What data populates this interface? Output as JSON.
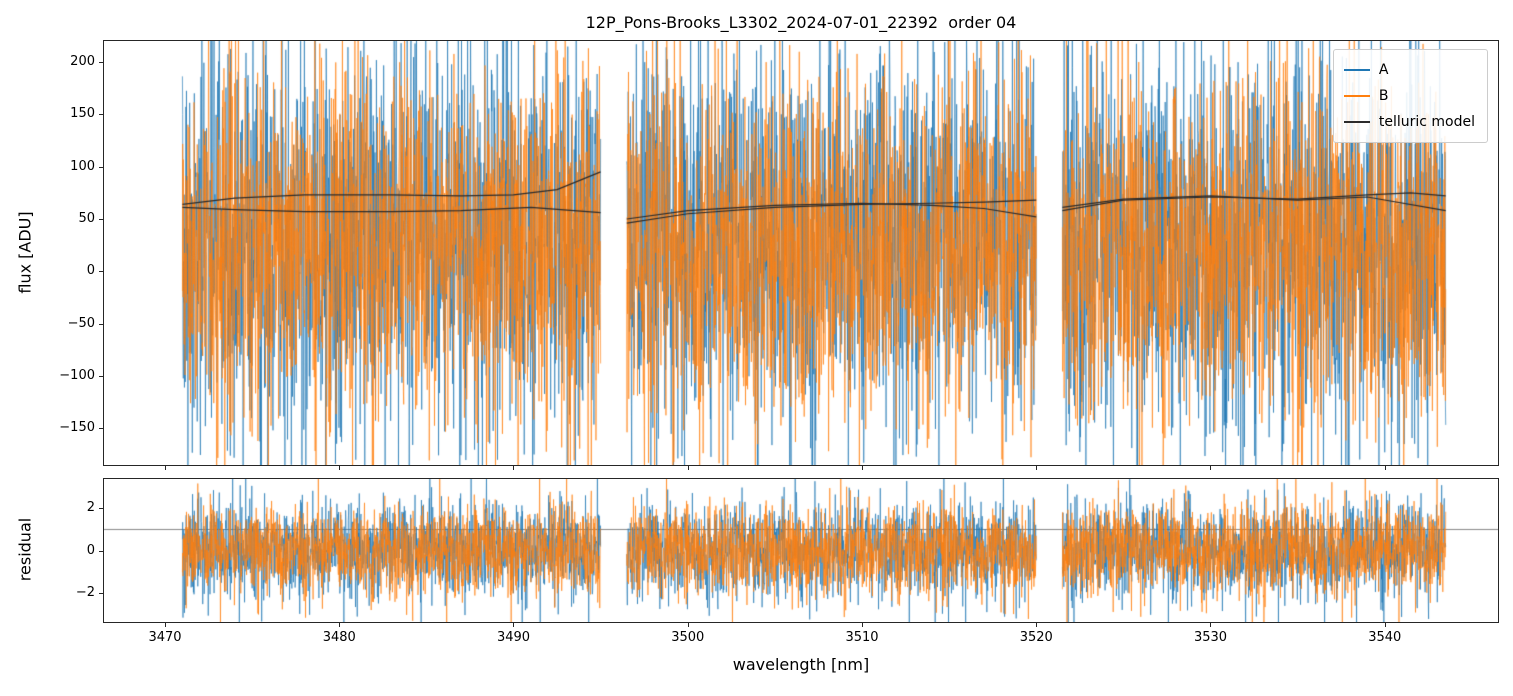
{
  "chart_data": [
    {
      "type": "line",
      "panel": "flux",
      "title": "12P_Pons-Brooks_L3302_2024-07-01_22392  order 04",
      "xlabel": "",
      "ylabel": "flux [ADU]",
      "xlim": [
        3466.5,
        3546.5
      ],
      "ylim": [
        -185,
        220
      ],
      "grid": false,
      "legend_loc": "upper right",
      "xticks": [
        {
          "v": 3470,
          "label": "3470"
        },
        {
          "v": 3480,
          "label": "3480"
        },
        {
          "v": 3490,
          "label": "3490"
        },
        {
          "v": 3500,
          "label": "3500"
        },
        {
          "v": 3510,
          "label": "3510"
        },
        {
          "v": 3520,
          "label": "3520"
        },
        {
          "v": 3530,
          "label": "3530"
        },
        {
          "v": 3540,
          "label": "3540"
        }
      ],
      "yticks": [
        {
          "v": -150,
          "label": "−150"
        },
        {
          "v": -100,
          "label": "−100"
        },
        {
          "v": -50,
          "label": "−50"
        },
        {
          "v": 0,
          "label": "0"
        },
        {
          "v": 50,
          "label": "50"
        },
        {
          "v": 100,
          "label": "100"
        },
        {
          "v": 150,
          "label": "150"
        },
        {
          "v": 200,
          "label": "200"
        }
      ],
      "segments": [
        [
          3471,
          3495
        ],
        [
          3496.5,
          3520
        ],
        [
          3521.5,
          3543.5
        ]
      ],
      "series": [
        {
          "name": "A",
          "color": "#1f77b4",
          "kind": "noise",
          "mean": 28,
          "sigma": 92,
          "points_per_nm": 60,
          "seed": 11
        },
        {
          "name": "B",
          "color": "#ff7f0e",
          "kind": "noise",
          "mean": 22,
          "sigma": 82,
          "points_per_nm": 60,
          "seed": 22
        },
        {
          "name": "telluric model",
          "color": "#2b2b2b",
          "kind": "model",
          "lines": [
            [
              [
                3471,
                64
              ],
              [
                3474,
                70
              ],
              [
                3478,
                73
              ],
              [
                3483,
                73
              ],
              [
                3487,
                72
              ],
              [
                3490,
                73
              ],
              [
                3492.5,
                78
              ],
              [
                3495,
                95
              ]
            ],
            [
              [
                3471,
                61
              ],
              [
                3474,
                59
              ],
              [
                3478,
                57
              ],
              [
                3483,
                57
              ],
              [
                3487,
                58
              ],
              [
                3491,
                61
              ],
              [
                3495,
                56
              ]
            ],
            [
              [
                3496.5,
                46
              ],
              [
                3500,
                55
              ],
              [
                3505,
                61
              ],
              [
                3510,
                64
              ],
              [
                3514,
                65
              ],
              [
                3517,
                66
              ],
              [
                3520,
                68
              ]
            ],
            [
              [
                3496.5,
                50
              ],
              [
                3500,
                58
              ],
              [
                3505,
                63
              ],
              [
                3510,
                65
              ],
              [
                3514,
                63
              ],
              [
                3517,
                60
              ],
              [
                3520,
                52
              ]
            ],
            [
              [
                3521.5,
                58
              ],
              [
                3525,
                68
              ],
              [
                3530,
                71
              ],
              [
                3535,
                69
              ],
              [
                3539,
                73
              ],
              [
                3541.5,
                75
              ],
              [
                3543.5,
                72
              ]
            ],
            [
              [
                3521.5,
                61
              ],
              [
                3525,
                69
              ],
              [
                3530,
                72
              ],
              [
                3535,
                68
              ],
              [
                3539,
                71
              ],
              [
                3543.5,
                58
              ]
            ]
          ]
        }
      ]
    },
    {
      "type": "line",
      "panel": "residual",
      "title": "",
      "xlabel": "wavelength [nm]",
      "ylabel": "residual",
      "xlim": [
        3466.5,
        3546.5
      ],
      "ylim": [
        -3.4,
        3.4
      ],
      "grid": false,
      "hline": {
        "y": 1,
        "color": "#666666"
      },
      "xticks": [
        {
          "v": 3470,
          "label": "3470"
        },
        {
          "v": 3480,
          "label": "3480"
        },
        {
          "v": 3490,
          "label": "3490"
        },
        {
          "v": 3500,
          "label": "3500"
        },
        {
          "v": 3510,
          "label": "3510"
        },
        {
          "v": 3520,
          "label": "3520"
        },
        {
          "v": 3530,
          "label": "3530"
        },
        {
          "v": 3540,
          "label": "3540"
        }
      ],
      "yticks": [
        {
          "v": -2,
          "label": "−2"
        },
        {
          "v": 0,
          "label": "0"
        },
        {
          "v": 2,
          "label": "2"
        }
      ],
      "segments": [
        [
          3471,
          3495
        ],
        [
          3496.5,
          3520
        ],
        [
          3521.5,
          3543.5
        ]
      ],
      "series": [
        {
          "name": "A",
          "color": "#1f77b4",
          "kind": "noise",
          "mean": 0,
          "sigma": 1.15,
          "points_per_nm": 60,
          "seed": 33
        },
        {
          "name": "B",
          "color": "#ff7f0e",
          "kind": "noise",
          "mean": 0,
          "sigma": 1.05,
          "points_per_nm": 60,
          "seed": 44
        }
      ]
    }
  ]
}
